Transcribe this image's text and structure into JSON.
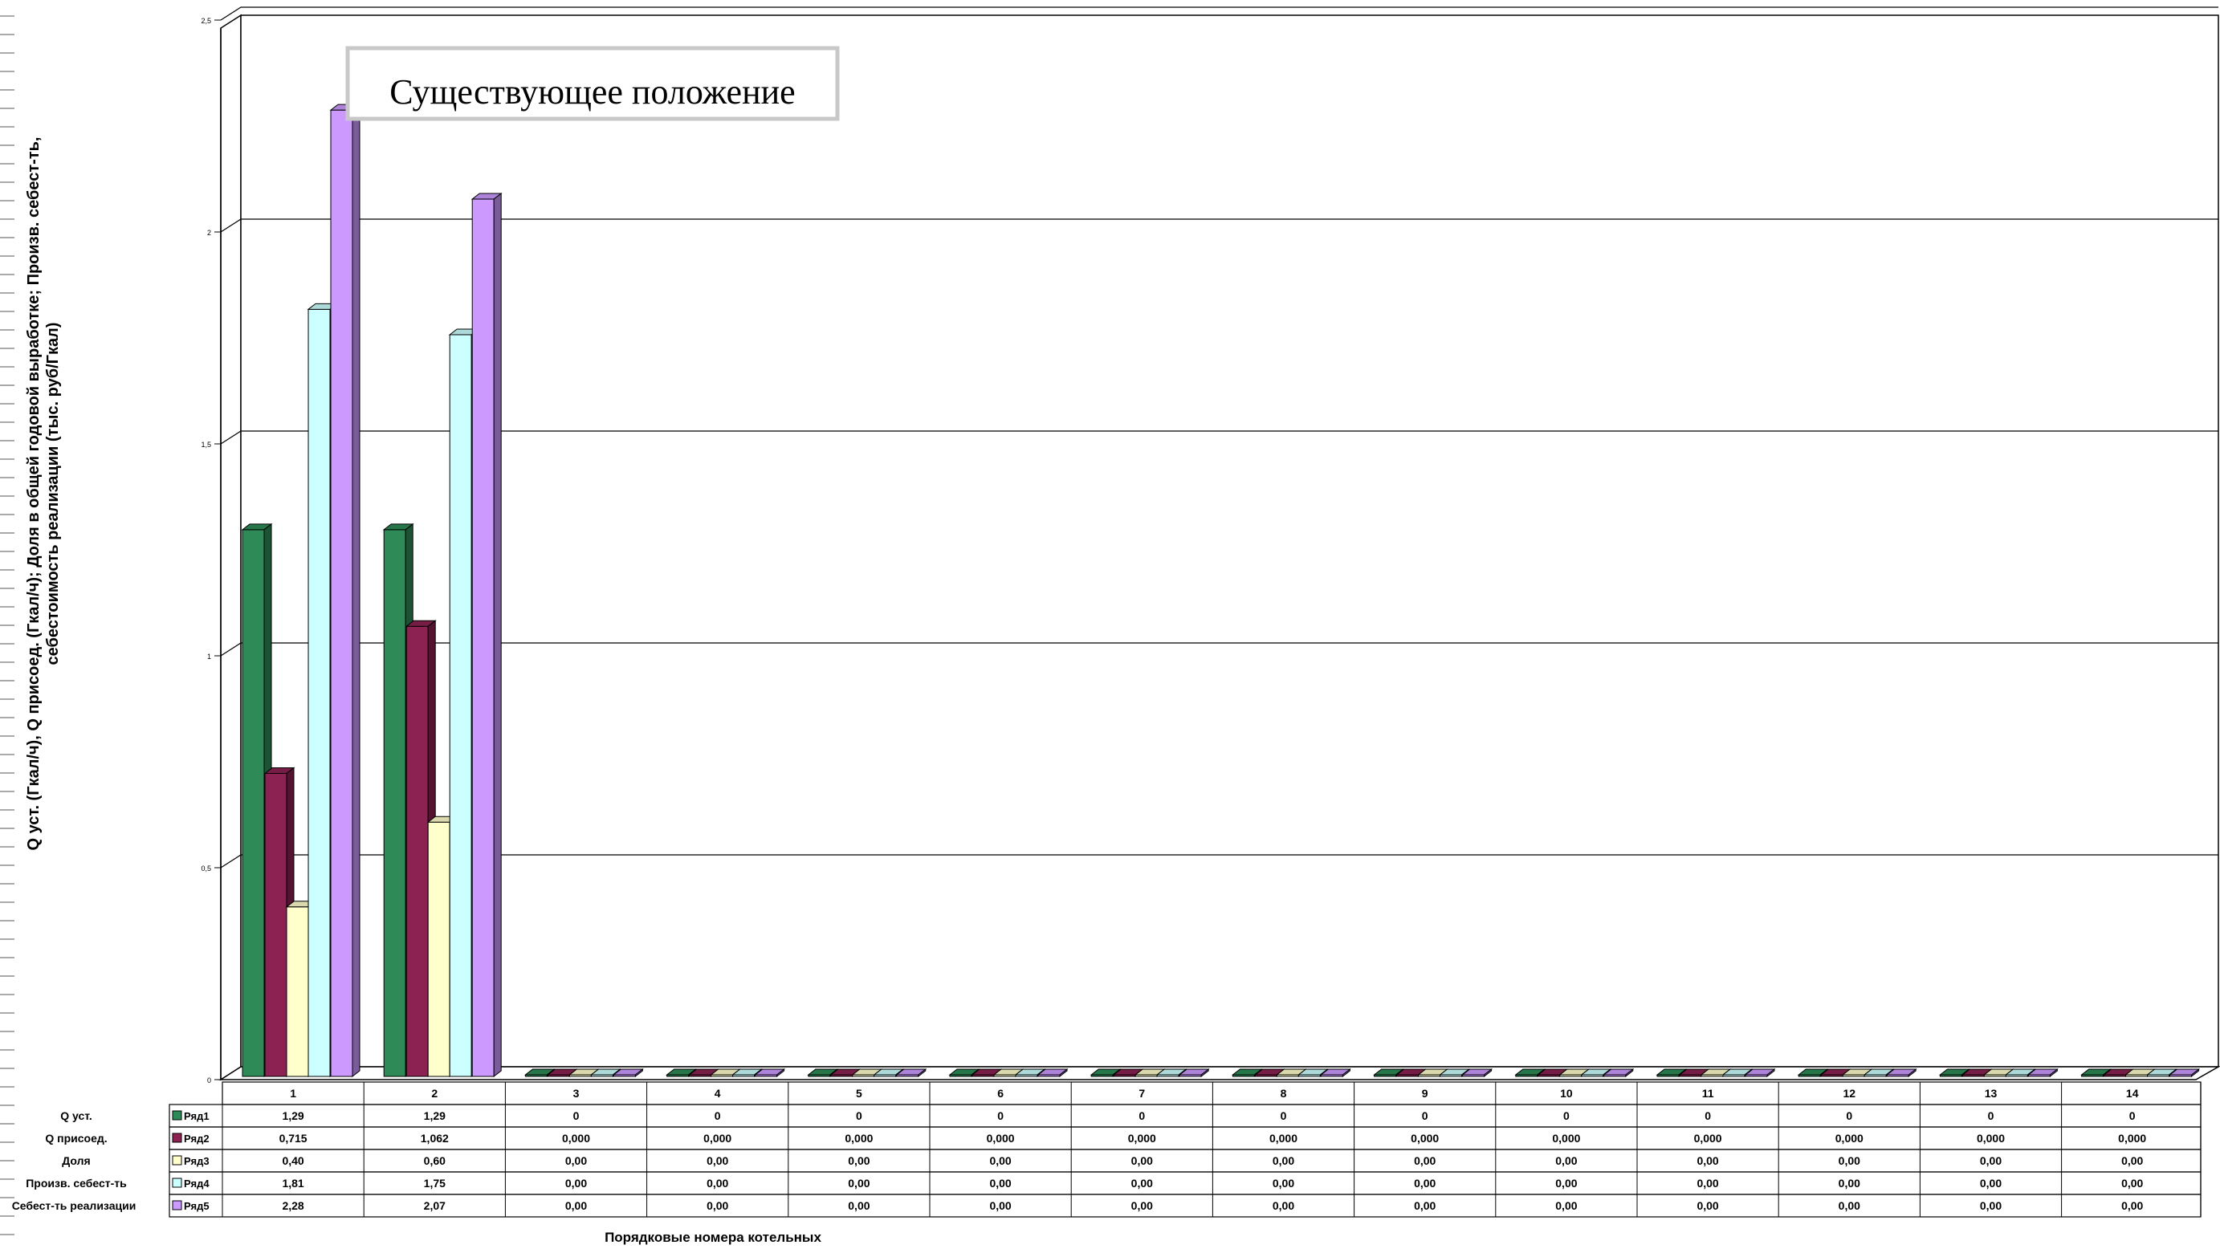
{
  "chart_data": {
    "type": "bar",
    "title": "Существующее положение",
    "ylabel_line1": "Q уст. (Гкал/ч), Q присоед. (Гкал/ч);  Доля в общей годовой выработке;  Произв. себест-ть,",
    "ylabel_line2": "себестоимость реализации (тыс. руб/Гкал)",
    "xlabel": "Порядковые номера котельных",
    "ylim": [
      0,
      2.5
    ],
    "yticks": [
      "0",
      "0,5",
      "1",
      "1,5",
      "2",
      "2,5"
    ],
    "ytick_values": [
      0,
      0.5,
      1,
      1.5,
      2,
      2.5
    ],
    "grid": true,
    "categories": [
      "1",
      "2",
      "3",
      "4",
      "5",
      "6",
      "7",
      "8",
      "9",
      "10",
      "11",
      "12",
      "13",
      "14"
    ],
    "series": [
      {
        "name": "Ряд1",
        "row_label": "Q уст.",
        "color": "#2e8b57",
        "values": [
          1.29,
          1.29,
          0,
          0,
          0,
          0,
          0,
          0,
          0,
          0,
          0,
          0,
          0,
          0
        ],
        "labels": [
          "1,29",
          "1,29",
          "0",
          "0",
          "0",
          "0",
          "0",
          "0",
          "0",
          "0",
          "0",
          "0",
          "0",
          "0"
        ]
      },
      {
        "name": "Ряд2",
        "row_label": "Q присоед.",
        "color": "#8b2252",
        "values": [
          0.715,
          1.062,
          0,
          0,
          0,
          0,
          0,
          0,
          0,
          0,
          0,
          0,
          0,
          0
        ],
        "labels": [
          "0,715",
          "1,062",
          "0,000",
          "0,000",
          "0,000",
          "0,000",
          "0,000",
          "0,000",
          "0,000",
          "0,000",
          "0,000",
          "0,000",
          "0,000",
          "0,000"
        ]
      },
      {
        "name": "Ряд3",
        "row_label": "Доля",
        "color": "#ffffcc",
        "values": [
          0.4,
          0.6,
          0,
          0,
          0,
          0,
          0,
          0,
          0,
          0,
          0,
          0,
          0,
          0
        ],
        "labels": [
          "0,40",
          "0,60",
          "0,00",
          "0,00",
          "0,00",
          "0,00",
          "0,00",
          "0,00",
          "0,00",
          "0,00",
          "0,00",
          "0,00",
          "0,00",
          "0,00"
        ]
      },
      {
        "name": "Ряд4",
        "row_label": "Произв. себест-ть",
        "color": "#ccffff",
        "values": [
          1.81,
          1.75,
          0,
          0,
          0,
          0,
          0,
          0,
          0,
          0,
          0,
          0,
          0,
          0
        ],
        "labels": [
          "1,81",
          "1,75",
          "0,00",
          "0,00",
          "0,00",
          "0,00",
          "0,00",
          "0,00",
          "0,00",
          "0,00",
          "0,00",
          "0,00",
          "0,00",
          "0,00"
        ]
      },
      {
        "name": "Ряд5",
        "row_label": "Себест-ть реализации",
        "color": "#cc99ff",
        "values": [
          2.28,
          2.07,
          0,
          0,
          0,
          0,
          0,
          0,
          0,
          0,
          0,
          0,
          0,
          0
        ],
        "labels": [
          "2,28",
          "2,07",
          "0,00",
          "0,00",
          "0,00",
          "0,00",
          "0,00",
          "0,00",
          "0,00",
          "0,00",
          "0,00",
          "0,00",
          "0,00",
          "0,00"
        ]
      }
    ]
  }
}
